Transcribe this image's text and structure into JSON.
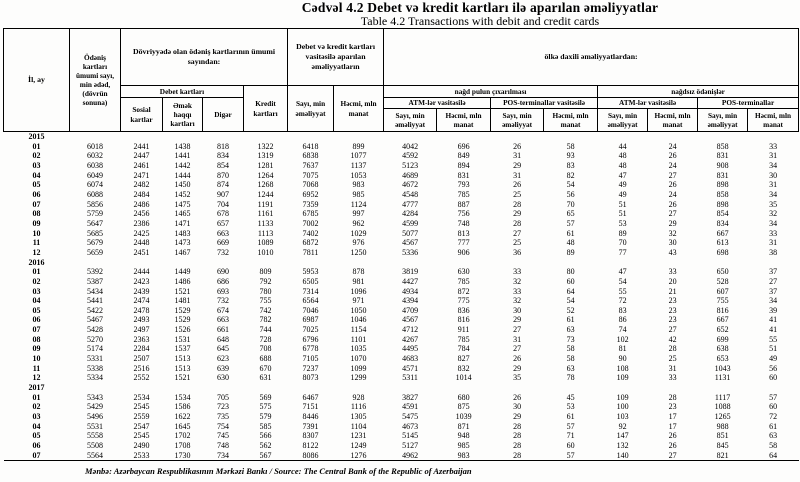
{
  "title": {
    "az": "Cədvəl 4.2 Debet və kredit kartları ilə aparılan əməliyyatlar",
    "en": "Table 4.2 Transactions with debit and credit cards"
  },
  "table": {
    "headers": {
      "col_il_ay": "İl, ay",
      "col_odenis": "Ödəniş kartları ümumi sayı, min ədəd, (dövrün sonuna)",
      "group_dovriyye": "Dövriyyədə olan ödəniş kartlarının ümumi sayından:",
      "group_debet": "Debet kartları",
      "col_sosial": "Sosial kartlar",
      "col_emek": "Əmək haqqı kartları",
      "col_diger": "Digər",
      "col_kredit": "Kredit kartları",
      "group_emeliyyat": "Debet və kredit kartları vasitəsilə aparılan əməliyyatların",
      "col_sayi": "Sayı, min əməliyyat",
      "col_hecmi": "Həcmi, mln manat",
      "group_olke": "ölkə daxili əməliyyatlardan:",
      "group_nagd": "nağd pulun çıxarılması",
      "group_nagdsiz": "nağdsız ödənişlər",
      "col_atm1": "ATM-lər vasitəsilə",
      "col_pos1": "POS-terminallar vasitəsilə",
      "col_atm2": "ATM-lər vasitəsilə",
      "col_pos2": "POS-terminallar"
    },
    "sections": [
      {
        "year": "2015",
        "rows": [
          {
            "month": "01",
            "values": [
              "6018",
              "2441",
              "1438",
              "818",
              "1322",
              "6418",
              "899",
              "4042",
              "696",
              "26",
              "58",
              "44",
              "24",
              "858",
              "33"
            ]
          },
          {
            "month": "02",
            "values": [
              "6032",
              "2447",
              "1441",
              "834",
              "1319",
              "6838",
              "1077",
              "4592",
              "849",
              "31",
              "93",
              "48",
              "26",
              "831",
              "31"
            ]
          },
          {
            "month": "03",
            "values": [
              "6038",
              "2461",
              "1442",
              "854",
              "1281",
              "7637",
              "1137",
              "5123",
              "894",
              "29",
              "83",
              "48",
              "24",
              "908",
              "34"
            ]
          },
          {
            "month": "04",
            "values": [
              "6049",
              "2471",
              "1444",
              "870",
              "1264",
              "7075",
              "1053",
              "4689",
              "831",
              "31",
              "82",
              "47",
              "27",
              "831",
              "30"
            ]
          },
          {
            "month": "05",
            "values": [
              "6074",
              "2482",
              "1450",
              "874",
              "1268",
              "7068",
              "983",
              "4672",
              "793",
              "26",
              "54",
              "49",
              "26",
              "898",
              "31"
            ]
          },
          {
            "month": "06",
            "values": [
              "6088",
              "2484",
              "1452",
              "907",
              "1244",
              "6952",
              "985",
              "4548",
              "785",
              "25",
              "56",
              "49",
              "24",
              "858",
              "34"
            ]
          },
          {
            "month": "07",
            "values": [
              "5856",
              "2486",
              "1475",
              "704",
              "1191",
              "7359",
              "1124",
              "4777",
              "887",
              "28",
              "70",
              "51",
              "26",
              "898",
              "35"
            ]
          },
          {
            "month": "08",
            "values": [
              "5759",
              "2456",
              "1465",
              "678",
              "1161",
              "6785",
              "997",
              "4284",
              "756",
              "29",
              "65",
              "51",
              "27",
              "854",
              "32"
            ]
          },
          {
            "month": "09",
            "values": [
              "5647",
              "2386",
              "1471",
              "657",
              "1133",
              "7002",
              "962",
              "4599",
              "748",
              "28",
              "57",
              "53",
              "29",
              "834",
              "34"
            ]
          },
          {
            "month": "10",
            "values": [
              "5685",
              "2425",
              "1483",
              "663",
              "1113",
              "7402",
              "1029",
              "5077",
              "813",
              "27",
              "61",
              "89",
              "32",
              "667",
              "33"
            ]
          },
          {
            "month": "11",
            "values": [
              "5679",
              "2448",
              "1473",
              "669",
              "1089",
              "6872",
              "976",
              "4567",
              "777",
              "25",
              "48",
              "70",
              "30",
              "613",
              "31"
            ]
          },
          {
            "month": "12",
            "values": [
              "5659",
              "2451",
              "1467",
              "732",
              "1010",
              "7811",
              "1250",
              "5336",
              "906",
              "36",
              "89",
              "77",
              "43",
              "698",
              "38"
            ]
          }
        ]
      },
      {
        "year": "2016",
        "rows": [
          {
            "month": "01",
            "values": [
              "5392",
              "2444",
              "1449",
              "690",
              "809",
              "5953",
              "878",
              "3819",
              "630",
              "33",
              "80",
              "47",
              "33",
              "650",
              "37"
            ]
          },
          {
            "month": "02",
            "values": [
              "5387",
              "2423",
              "1486",
              "686",
              "792",
              "6505",
              "981",
              "4427",
              "785",
              "32",
              "60",
              "54",
              "20",
              "528",
              "27"
            ]
          },
          {
            "month": "03",
            "values": [
              "5434",
              "2439",
              "1521",
              "693",
              "780",
              "7314",
              "1096",
              "4934",
              "872",
              "33",
              "64",
              "55",
              "21",
              "607",
              "37"
            ]
          },
          {
            "month": "04",
            "values": [
              "5441",
              "2474",
              "1481",
              "732",
              "755",
              "6564",
              "971",
              "4394",
              "775",
              "32",
              "54",
              "72",
              "23",
              "755",
              "34"
            ]
          },
          {
            "month": "05",
            "values": [
              "5422",
              "2478",
              "1529",
              "674",
              "742",
              "7046",
              "1050",
              "4709",
              "836",
              "30",
              "52",
              "83",
              "23",
              "816",
              "39"
            ]
          },
          {
            "month": "06",
            "values": [
              "5467",
              "2493",
              "1529",
              "663",
              "782",
              "6987",
              "1046",
              "4567",
              "816",
              "29",
              "61",
              "86",
              "23",
              "667",
              "41"
            ]
          },
          {
            "month": "07",
            "values": [
              "5428",
              "2497",
              "1526",
              "661",
              "744",
              "7025",
              "1154",
              "4712",
              "911",
              "27",
              "63",
              "74",
              "27",
              "652",
              "41"
            ]
          },
          {
            "month": "08",
            "values": [
              "5270",
              "2363",
              "1531",
              "648",
              "728",
              "6796",
              "1101",
              "4267",
              "785",
              "31",
              "73",
              "102",
              "42",
              "699",
              "55"
            ]
          },
          {
            "month": "09",
            "values": [
              "5174",
              "2284",
              "1537",
              "645",
              "708",
              "6778",
              "1035",
              "4495",
              "784",
              "27",
              "58",
              "81",
              "28",
              "638",
              "51"
            ]
          },
          {
            "month": "10",
            "values": [
              "5331",
              "2507",
              "1513",
              "623",
              "688",
              "7105",
              "1070",
              "4683",
              "827",
              "26",
              "58",
              "90",
              "25",
              "653",
              "49"
            ]
          },
          {
            "month": "11",
            "values": [
              "5338",
              "2516",
              "1513",
              "639",
              "670",
              "7237",
              "1099",
              "4571",
              "832",
              "29",
              "63",
              "108",
              "31",
              "1043",
              "56"
            ]
          },
          {
            "month": "12",
            "values": [
              "5334",
              "2552",
              "1521",
              "630",
              "631",
              "8073",
              "1299",
              "5311",
              "1014",
              "35",
              "78",
              "109",
              "33",
              "1131",
              "60"
            ]
          }
        ]
      },
      {
        "year": "2017",
        "rows": [
          {
            "month": "01",
            "values": [
              "5343",
              "2534",
              "1534",
              "705",
              "569",
              "6467",
              "928",
              "3827",
              "680",
              "26",
              "45",
              "109",
              "28",
              "1117",
              "57"
            ]
          },
          {
            "month": "02",
            "values": [
              "5429",
              "2545",
              "1586",
              "723",
              "575",
              "7151",
              "1116",
              "4591",
              "875",
              "30",
              "53",
              "100",
              "23",
              "1088",
              "60"
            ]
          },
          {
            "month": "03",
            "values": [
              "5496",
              "2559",
              "1622",
              "735",
              "579",
              "8446",
              "1305",
              "5475",
              "1039",
              "29",
              "61",
              "103",
              "17",
              "1265",
              "72"
            ]
          },
          {
            "month": "04",
            "values": [
              "5531",
              "2547",
              "1645",
              "754",
              "585",
              "7391",
              "1104",
              "4673",
              "871",
              "28",
              "57",
              "92",
              "17",
              "988",
              "61"
            ]
          },
          {
            "month": "05",
            "values": [
              "5558",
              "2545",
              "1702",
              "745",
              "566",
              "8307",
              "1231",
              "5145",
              "948",
              "28",
              "71",
              "147",
              "26",
              "851",
              "63"
            ]
          },
          {
            "month": "06",
            "values": [
              "5508",
              "2490",
              "1708",
              "748",
              "562",
              "8122",
              "1249",
              "5127",
              "985",
              "28",
              "60",
              "132",
              "26",
              "845",
              "58"
            ]
          },
          {
            "month": "07",
            "values": [
              "5564",
              "2533",
              "1730",
              "734",
              "567",
              "8086",
              "1276",
              "4962",
              "983",
              "28",
              "57",
              "140",
              "27",
              "821",
              "64"
            ]
          }
        ]
      }
    ]
  },
  "footer": {
    "source": "Mənbə: Azərbaycan Respublikasının Mərkəzi Bankı / Source: The Central Bank of the Republic of Azerbaijan"
  }
}
